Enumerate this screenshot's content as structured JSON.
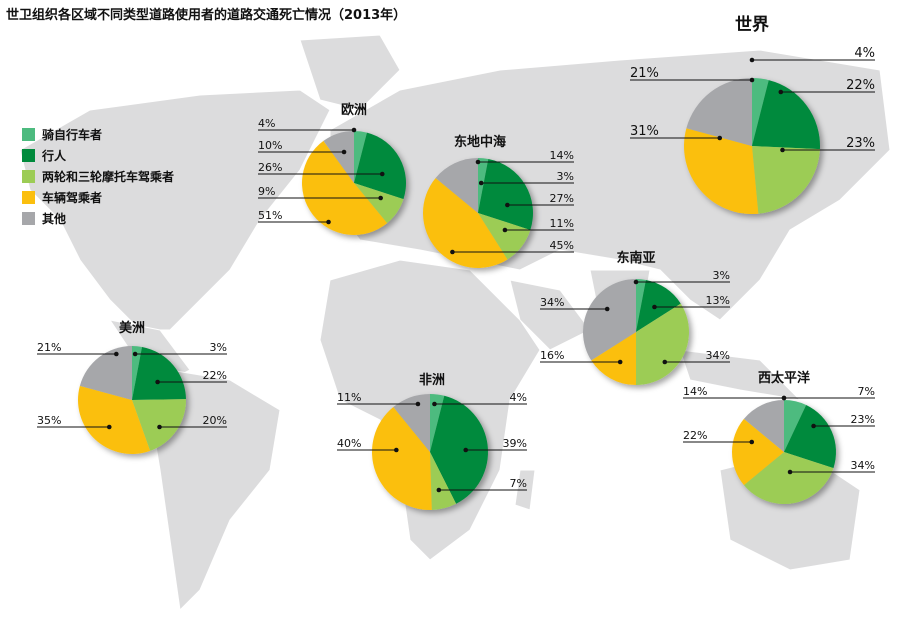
{
  "title": "世卫组织各区域不同类型道路使用者的道路交通死亡情况（2013年）",
  "legend": [
    {
      "label": "骑自行车者",
      "color": "#4dbb7f"
    },
    {
      "label": "行人",
      "color": "#008a3c"
    },
    {
      "label": "两轮和三轮摩托车驾乘者",
      "color": "#9ccc55"
    },
    {
      "label": "车辆驾乘者",
      "color": "#fbbf0e"
    },
    {
      "label": "其他",
      "color": "#a6a7aa"
    }
  ],
  "chart_data": {
    "type": "pie",
    "title": "世卫组织各区域不同类型道路使用者的道路交通死亡情况（2013年）",
    "categories": [
      "骑自行车者",
      "行人",
      "两轮和三轮摩托车驾乘者",
      "车辆驾乘者",
      "其他"
    ],
    "series": [
      {
        "name": "世界",
        "values": [
          4,
          22,
          23,
          31,
          21
        ]
      },
      {
        "name": "欧洲",
        "values": [
          4,
          26,
          9,
          51,
          10
        ]
      },
      {
        "name": "东地中海",
        "values": [
          3,
          27,
          11,
          45,
          14
        ]
      },
      {
        "name": "东南亚",
        "values": [
          3,
          13,
          34,
          16,
          34
        ]
      },
      {
        "name": "美洲",
        "values": [
          3,
          22,
          20,
          35,
          21
        ]
      },
      {
        "name": "非洲",
        "values": [
          4,
          39,
          7,
          40,
          11
        ]
      },
      {
        "name": "西太平洋",
        "values": [
          7,
          23,
          34,
          22,
          14
        ]
      }
    ],
    "unit": "%"
  }
}
